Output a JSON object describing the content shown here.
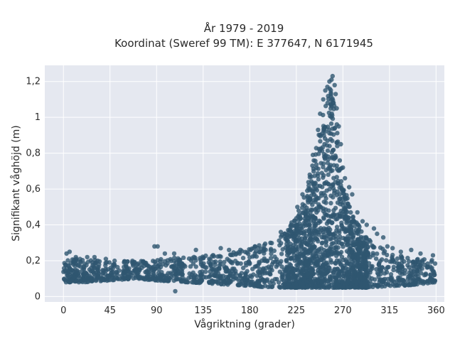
{
  "chart_data": {
    "type": "scatter",
    "title_line1": "År 1979 - 2019",
    "title_line2": "Koordinat (Sweref 99 TM): E 377647, N 6171945",
    "xlabel": "Vågriktning (grader)",
    "ylabel": "Signifikant våghöjd (m)",
    "xlim": [
      -18,
      368
    ],
    "ylim": [
      -0.03,
      1.29
    ],
    "x_ticks": [
      0,
      45,
      90,
      135,
      180,
      225,
      270,
      315,
      360
    ],
    "x_tick_labels": [
      "0",
      "45",
      "90",
      "135",
      "180",
      "225",
      "270",
      "315",
      "360"
    ],
    "y_ticks": [
      0,
      0.2,
      0.4,
      0.6,
      0.8,
      1.0,
      1.2
    ],
    "y_tick_labels": [
      "0",
      "0,2",
      "0,4",
      "0,6",
      "0,8",
      "1",
      "1,2"
    ],
    "grid": true,
    "plot_background": "#e5e8f0",
    "marker_color": "#2f5670",
    "envelope": {
      "x": [
        0,
        20,
        45,
        70,
        90,
        120,
        150,
        180,
        200,
        215,
        225,
        235,
        245,
        250,
        255,
        258,
        262,
        265,
        270,
        280,
        290,
        300,
        315,
        330,
        345,
        360
      ],
      "y_max": [
        0.21,
        0.21,
        0.2,
        0.2,
        0.21,
        0.22,
        0.24,
        0.27,
        0.31,
        0.37,
        0.45,
        0.6,
        0.85,
        1.0,
        1.12,
        1.18,
        1.1,
        0.92,
        0.63,
        0.45,
        0.35,
        0.29,
        0.25,
        0.22,
        0.21,
        0.21
      ],
      "y_min": [
        0.08,
        0.08,
        0.09,
        0.1,
        0.09,
        0.08,
        0.07,
        0.06,
        0.05,
        0.05,
        0.05,
        0.05,
        0.05,
        0.05,
        0.05,
        0.05,
        0.05,
        0.05,
        0.05,
        0.05,
        0.05,
        0.05,
        0.06,
        0.06,
        0.07,
        0.08
      ]
    },
    "outliers": [
      [
        3,
        0.24
      ],
      [
        6,
        0.25
      ],
      [
        12,
        0.22
      ],
      [
        23,
        0.22
      ],
      [
        30,
        0.22
      ],
      [
        41,
        0.21
      ],
      [
        88,
        0.28
      ],
      [
        91,
        0.28
      ],
      [
        98,
        0.24
      ],
      [
        107,
        0.24
      ],
      [
        108,
        0.03
      ],
      [
        128,
        0.26
      ],
      [
        152,
        0.27
      ],
      [
        160,
        0.26
      ],
      [
        171,
        0.26
      ],
      [
        185,
        0.28
      ],
      [
        200,
        0.3
      ],
      [
        210,
        0.36
      ],
      [
        220,
        0.4
      ],
      [
        226,
        0.5
      ],
      [
        231,
        0.57
      ],
      [
        238,
        0.68
      ],
      [
        241,
        0.79
      ],
      [
        246,
        0.93
      ],
      [
        248,
        1.02
      ],
      [
        251,
        1.1
      ],
      [
        253,
        1.15
      ],
      [
        255,
        1.17
      ],
      [
        257,
        1.2
      ],
      [
        259,
        1.21
      ],
      [
        260,
        1.23
      ],
      [
        262,
        1.18
      ],
      [
        263,
        1.13
      ],
      [
        264,
        1.05
      ],
      [
        266,
        0.95
      ],
      [
        268,
        0.85
      ],
      [
        270,
        0.72
      ],
      [
        272,
        0.66
      ],
      [
        276,
        0.61
      ],
      [
        279,
        0.57
      ],
      [
        284,
        0.47
      ],
      [
        289,
        0.42
      ],
      [
        293,
        0.4
      ],
      [
        300,
        0.38
      ],
      [
        303,
        0.35
      ],
      [
        309,
        0.33
      ],
      [
        313,
        0.28
      ],
      [
        318,
        0.27
      ],
      [
        326,
        0.25
      ],
      [
        336,
        0.26
      ],
      [
        345,
        0.24
      ],
      [
        357,
        0.23
      ]
    ],
    "n_points": 2600
  }
}
